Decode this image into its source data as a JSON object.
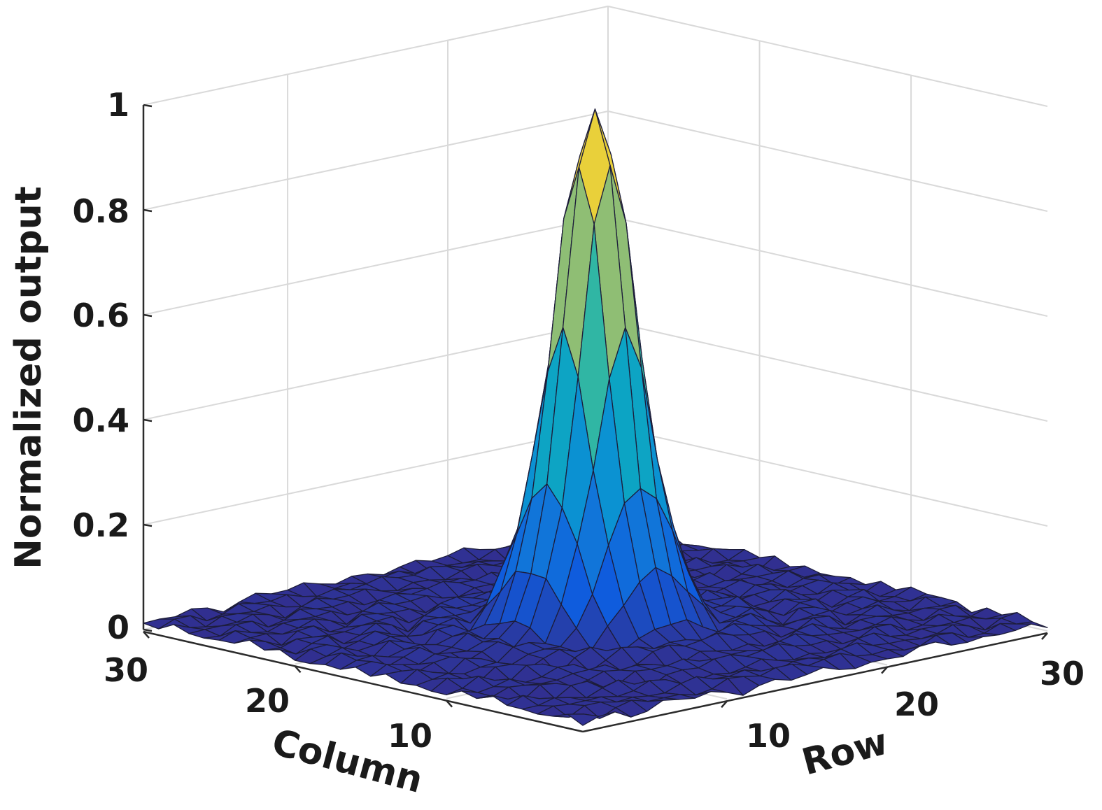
{
  "chart_data": {
    "type": "surface",
    "title": "",
    "xlabel": "Column",
    "ylabel": "Row",
    "zlabel": "Normalized output",
    "x_ticks": [
      "10",
      "20",
      "30"
    ],
    "y_ticks": [
      "10",
      "20",
      "30"
    ],
    "z_ticks": [
      "0",
      "0.2",
      "0.4",
      "0.6",
      "0.8",
      "1"
    ],
    "xlim": [
      1,
      30
    ],
    "ylim": [
      1,
      30
    ],
    "zlim": [
      0,
      1
    ],
    "grid": true,
    "colormap": "parula",
    "grid_size": 30,
    "peak": {
      "column": 15,
      "row": 15,
      "value": 0.98
    },
    "peak_width": 1.9,
    "sidelobe_amplitude": 0.045,
    "grid_color": "#d9d9d9",
    "mesh_edge_color": "#1d1d3a"
  }
}
